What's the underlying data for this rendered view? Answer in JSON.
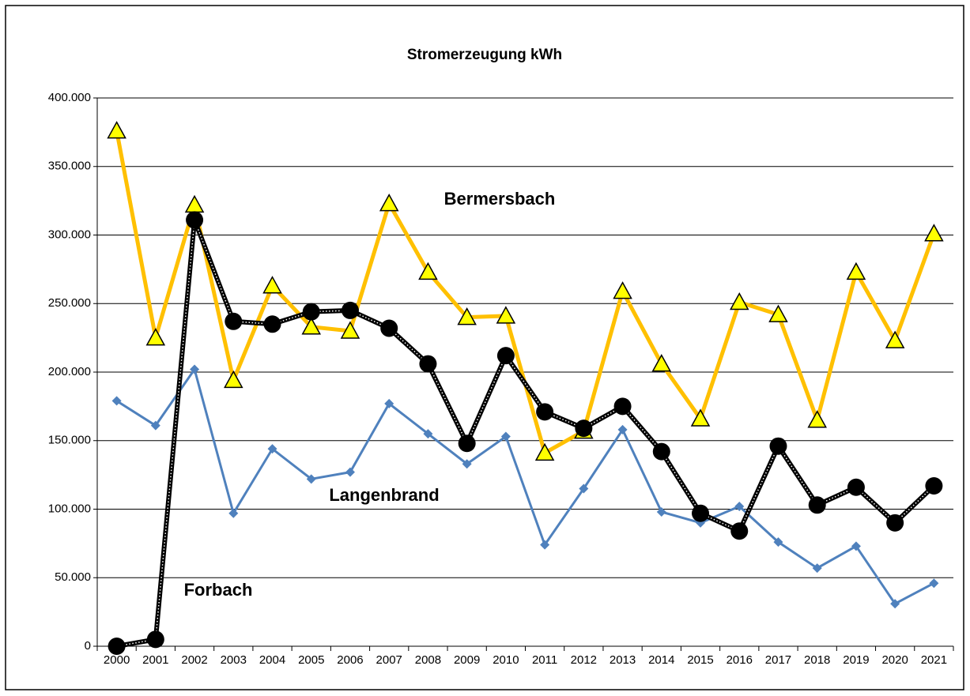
{
  "chart_data": {
    "type": "line",
    "title": "Stromerzeugung kWh",
    "categories": [
      "2000",
      "2001",
      "2002",
      "2003",
      "2004",
      "2005",
      "2006",
      "2007",
      "2008",
      "2009",
      "2010",
      "2011",
      "2012",
      "2013",
      "2014",
      "2015",
      "2016",
      "2017",
      "2018",
      "2019",
      "2020",
      "2021"
    ],
    "series": [
      {
        "name": "Bermersbach",
        "color": "#ffc000",
        "marker": "triangle",
        "values": [
          376000,
          225000,
          322000,
          194000,
          263000,
          233000,
          230000,
          323000,
          273000,
          240000,
          241000,
          141000,
          157000,
          259000,
          206000,
          166000,
          251000,
          242000,
          165000,
          273000,
          223000,
          301000
        ]
      },
      {
        "name": "Langenbrand",
        "color": "#4f81bd",
        "marker": "diamond",
        "values": [
          179000,
          161000,
          202000,
          97000,
          144000,
          122000,
          127000,
          177000,
          155000,
          133000,
          153000,
          74000,
          115000,
          158000,
          98000,
          90000,
          102000,
          76000,
          57000,
          73000,
          31000,
          46000
        ]
      },
      {
        "name": "Forbach",
        "color": "#000000",
        "marker": "circle",
        "values": [
          0,
          5000,
          311000,
          237000,
          235000,
          244000,
          245000,
          232000,
          206000,
          148000,
          212000,
          171000,
          159000,
          175000,
          142000,
          97000,
          84000,
          146000,
          103000,
          116000,
          90000,
          117000
        ]
      }
    ],
    "ylim": [
      0,
      400000
    ],
    "yticks": [
      0,
      {
        "value": 50000,
        "label": "50.000"
      },
      {
        "value": 100000,
        "label": "100.000"
      },
      {
        "value": 150000,
        "label": "150.000"
      },
      {
        "value": 200000,
        "label": "200.000"
      },
      {
        "value": 250000,
        "label": "250.000"
      },
      {
        "value": 300000,
        "label": "300.000"
      },
      {
        "value": 350000,
        "label": "350.000"
      },
      {
        "value": 400000,
        "label": "400.000"
      }
    ],
    "grid": true
  }
}
